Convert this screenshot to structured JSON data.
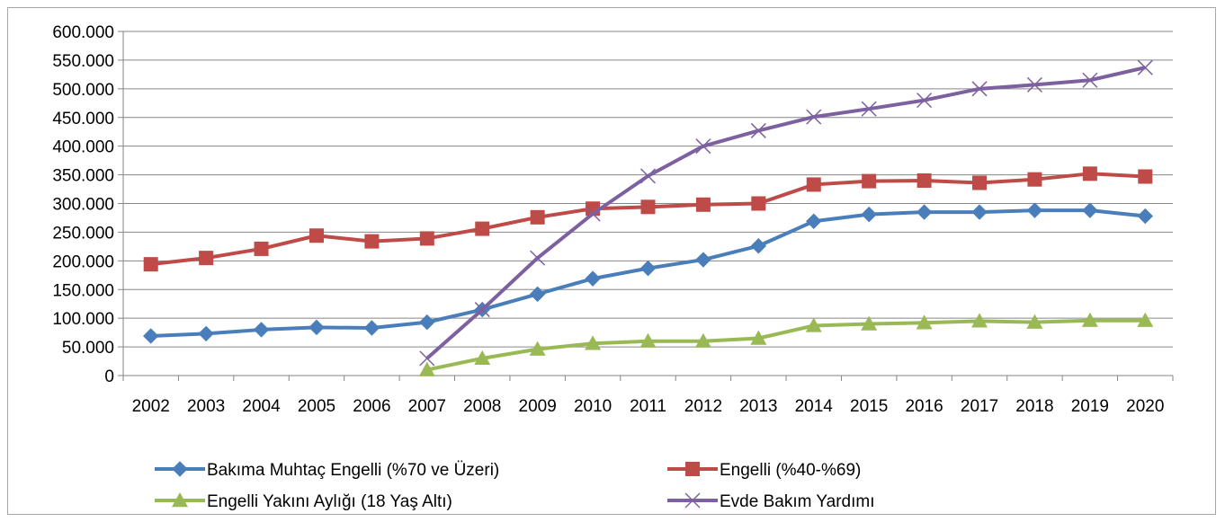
{
  "chart_data": {
    "type": "line",
    "title": "",
    "xlabel": "",
    "ylabel": "",
    "ylim": [
      0,
      600000
    ],
    "y_ticks": [
      0,
      50000,
      100000,
      150000,
      200000,
      250000,
      300000,
      350000,
      400000,
      450000,
      500000,
      550000,
      600000
    ],
    "y_tick_labels": [
      "0",
      "50.000",
      "100.000",
      "150.000",
      "200.000",
      "250.000",
      "300.000",
      "350.000",
      "400.000",
      "450.000",
      "500.000",
      "550.000",
      "600.000"
    ],
    "grid": "horizontal",
    "legend_position": "bottom",
    "categories": [
      "2002",
      "2003",
      "2004",
      "2005",
      "2006",
      "2007",
      "2008",
      "2009",
      "2010",
      "2011",
      "2012",
      "2013",
      "2014",
      "2015",
      "2016",
      "2017",
      "2018",
      "2019",
      "2020"
    ],
    "series": [
      {
        "name": "Bakıma Muhtaç Engelli (%70 ve Üzeri)",
        "color": "#4a7ebb",
        "marker": "diamond",
        "values": [
          69000,
          73000,
          80000,
          84000,
          83000,
          93000,
          115000,
          142000,
          169000,
          187000,
          202000,
          226000,
          269000,
          281000,
          285000,
          285000,
          288000,
          288000,
          278000
        ]
      },
      {
        "name": "Engelli (%40-%69)",
        "color": "#be4b48",
        "marker": "square",
        "values": [
          194000,
          205000,
          221000,
          244000,
          234000,
          239000,
          256000,
          276000,
          291000,
          294000,
          298000,
          300000,
          333000,
          339000,
          340000,
          336000,
          342000,
          352000,
          347000
        ]
      },
      {
        "name": "Engelli Yakını Aylığı (18 Yaş Altı)",
        "color": "#98b954",
        "marker": "triangle",
        "values": [
          null,
          null,
          null,
          null,
          null,
          10000,
          30000,
          46000,
          56000,
          60000,
          60000,
          65000,
          87000,
          90000,
          92000,
          95000,
          93000,
          96000,
          96000
        ]
      },
      {
        "name": "Evde Bakım Yardımı",
        "color": "#7d60a0",
        "marker": "x",
        "values": [
          null,
          null,
          null,
          null,
          null,
          30000,
          115000,
          205000,
          282000,
          348000,
          400000,
          427000,
          451000,
          465000,
          480000,
          500000,
          507000,
          515000,
          537000
        ]
      }
    ]
  }
}
